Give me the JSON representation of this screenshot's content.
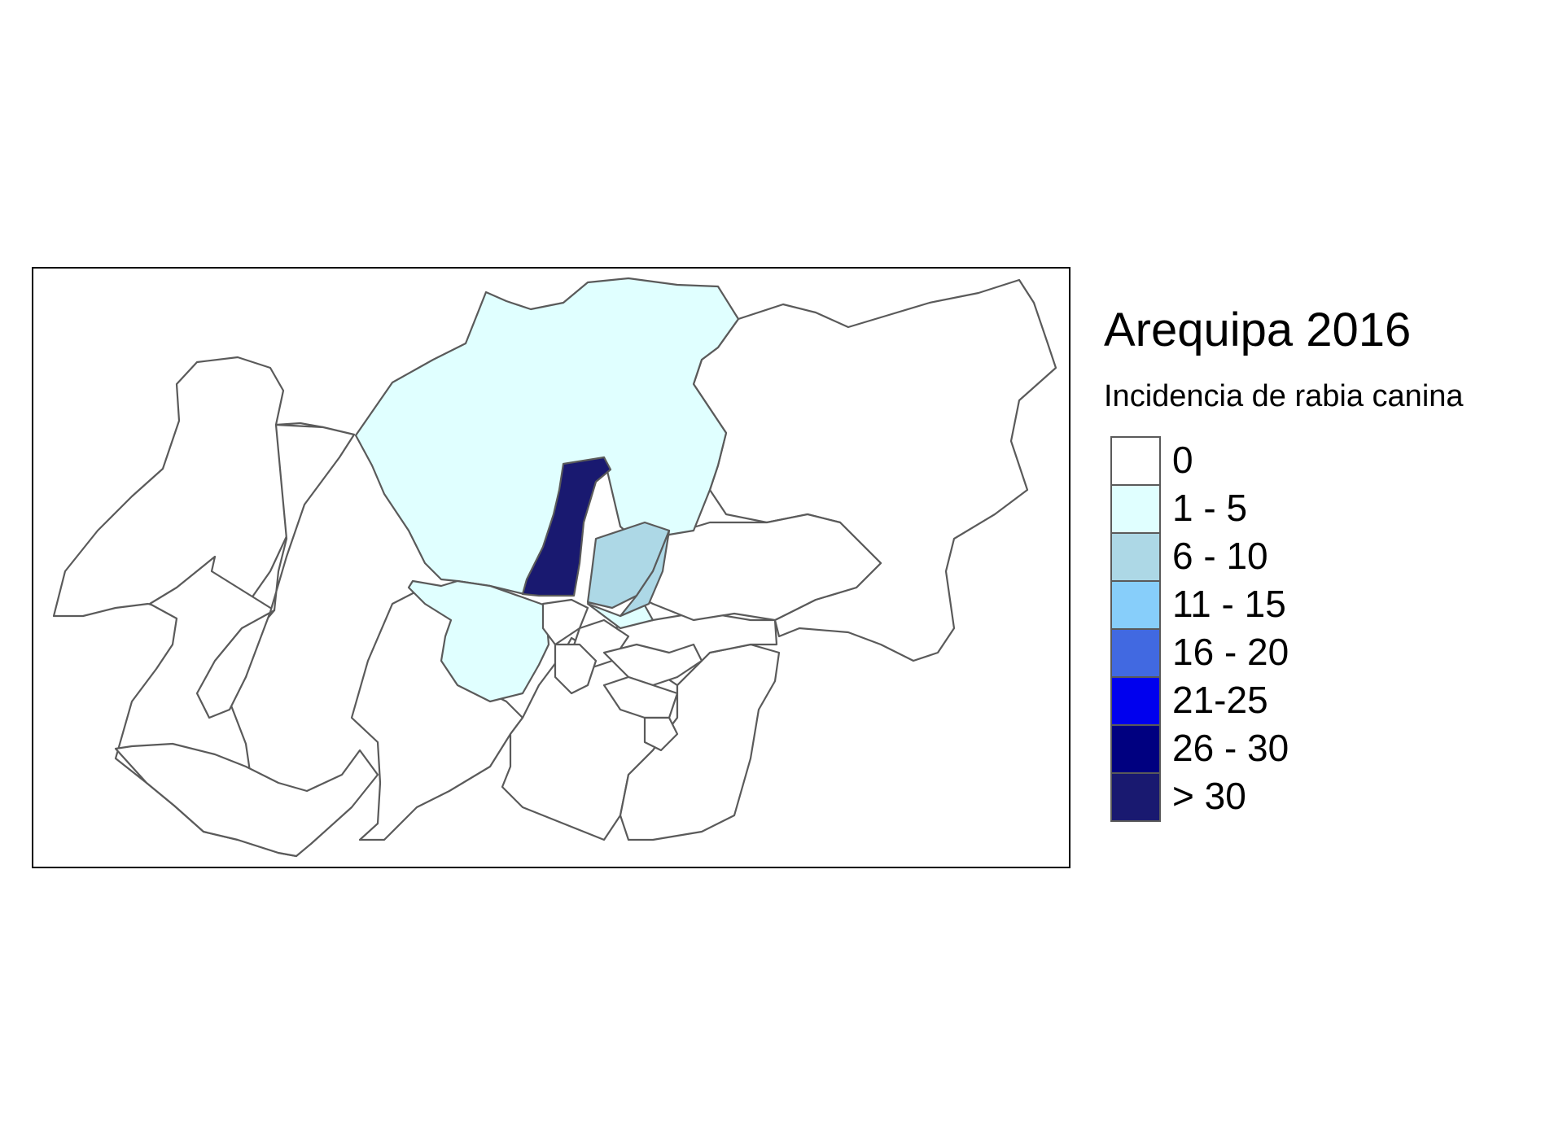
{
  "legend": {
    "title": "Arequipa 2016",
    "subtitle": "Incidencia de rabia canina",
    "classes": [
      {
        "label": "0",
        "color": "#FFFFFF"
      },
      {
        "label": "1 - 5",
        "color": "#E0FFFF"
      },
      {
        "label": "6 - 10",
        "color": "#ADD8E6"
      },
      {
        "label": "11 - 15",
        "color": "#87CEFA"
      },
      {
        "label": "16 - 20",
        "color": "#4169E1"
      },
      {
        "label": "21-25",
        "color": "#0000EE"
      },
      {
        "label": "26 - 30",
        "color": "#000080"
      },
      {
        "label": "> 30",
        "color": "#191970"
      }
    ]
  },
  "map": {
    "district_classes": [
      "0",
      "0",
      "0",
      "0",
      "0",
      "0",
      "0",
      "0",
      "0",
      "0",
      "1 - 5",
      "1 - 5",
      "1 - 5",
      "6 - 10",
      "6 - 10",
      "> 30",
      "0",
      "0",
      "0",
      "0",
      "0",
      "0"
    ]
  }
}
